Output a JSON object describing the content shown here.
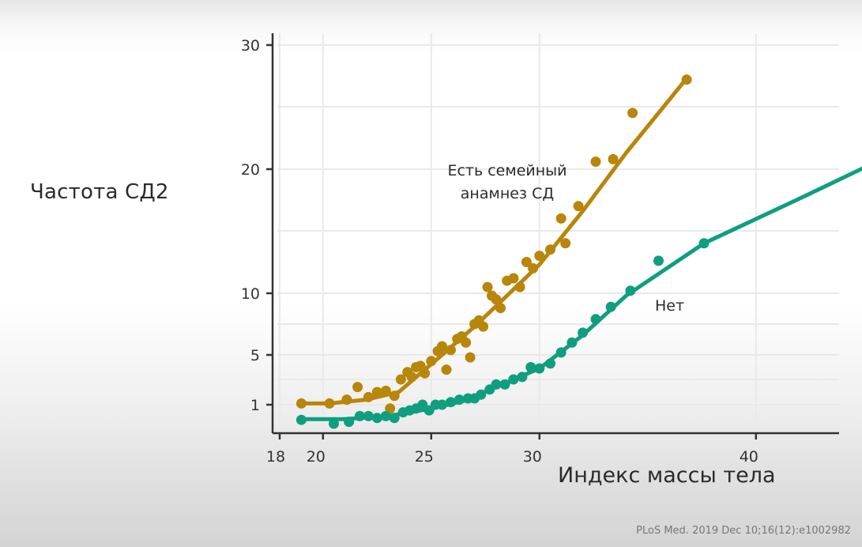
{
  "chart_data": {
    "type": "scatter",
    "title": "",
    "xlabel": "Индекс массы тела",
    "ylabel": "Частота СД2",
    "x_ticks": [
      18,
      20,
      25,
      30,
      40
    ],
    "y_ticks": [
      1,
      5,
      10,
      20,
      30
    ],
    "x_gridlines": [
      18,
      20,
      25,
      30,
      40
    ],
    "y_gridlines": [
      1,
      3,
      5,
      7.5,
      10,
      15,
      20,
      25,
      30
    ],
    "xlim": [
      17.8,
      47
    ],
    "ylim": [
      0,
      31
    ],
    "grid": true,
    "legend": "inline annotations",
    "series": [
      {
        "name": "Есть семейный анамнез СД",
        "color": "#b8860b",
        "points": [
          [
            19.0,
            1.1
          ],
          [
            20.3,
            1.1
          ],
          [
            21.1,
            1.4
          ],
          [
            21.6,
            2.4
          ],
          [
            22.1,
            1.6
          ],
          [
            22.5,
            2.0
          ],
          [
            22.9,
            2.1
          ],
          [
            23.1,
            0.9
          ],
          [
            23.3,
            1.7
          ],
          [
            23.6,
            3.0
          ],
          [
            23.9,
            3.6
          ],
          [
            24.1,
            3.2
          ],
          [
            24.3,
            4.0
          ],
          [
            24.5,
            4.1
          ],
          [
            24.7,
            3.5
          ],
          [
            25.0,
            4.5
          ],
          [
            25.3,
            5.3
          ],
          [
            25.5,
            5.7
          ],
          [
            25.7,
            3.8
          ],
          [
            25.9,
            5.4
          ],
          [
            26.2,
            6.3
          ],
          [
            26.4,
            6.5
          ],
          [
            26.6,
            6.0
          ],
          [
            26.8,
            4.8
          ],
          [
            27.0,
            7.5
          ],
          [
            27.2,
            7.8
          ],
          [
            27.4,
            7.3
          ],
          [
            27.6,
            10.5
          ],
          [
            27.8,
            9.8
          ],
          [
            28.0,
            9.5
          ],
          [
            28.2,
            8.8
          ],
          [
            28.5,
            11.0
          ],
          [
            28.8,
            11.2
          ],
          [
            29.1,
            10.5
          ],
          [
            29.4,
            12.5
          ],
          [
            29.7,
            12.0
          ],
          [
            30.0,
            13.0
          ],
          [
            30.5,
            13.5
          ],
          [
            31.0,
            16.0
          ],
          [
            31.2,
            14.0
          ],
          [
            31.8,
            17.0
          ],
          [
            32.6,
            20.6
          ],
          [
            33.4,
            20.8
          ],
          [
            34.3,
            24.5
          ],
          [
            36.8,
            27.2
          ]
        ]
      },
      {
        "name": "Нет",
        "color": "#0f9e80",
        "points": [
          [
            19.0,
            0.6
          ],
          [
            20.5,
            0.5
          ],
          [
            21.2,
            0.55
          ],
          [
            21.7,
            0.7
          ],
          [
            22.1,
            0.7
          ],
          [
            22.5,
            0.65
          ],
          [
            22.9,
            0.7
          ],
          [
            23.3,
            0.65
          ],
          [
            23.7,
            0.8
          ],
          [
            24.0,
            0.85
          ],
          [
            24.3,
            0.9
          ],
          [
            24.6,
            1.0
          ],
          [
            24.9,
            0.85
          ],
          [
            25.2,
            1.0
          ],
          [
            25.5,
            1.0
          ],
          [
            25.9,
            1.2
          ],
          [
            26.3,
            1.4
          ],
          [
            26.7,
            1.5
          ],
          [
            27.0,
            1.5
          ],
          [
            27.3,
            1.8
          ],
          [
            27.7,
            2.2
          ],
          [
            28.0,
            2.6
          ],
          [
            28.4,
            2.6
          ],
          [
            28.8,
            3.0
          ],
          [
            29.2,
            3.2
          ],
          [
            29.6,
            4.0
          ],
          [
            30.0,
            3.9
          ],
          [
            30.5,
            4.3
          ],
          [
            31.0,
            5.2
          ],
          [
            31.5,
            6.0
          ],
          [
            32.0,
            6.8
          ],
          [
            32.6,
            7.9
          ],
          [
            33.3,
            8.9
          ],
          [
            34.2,
            10.2
          ],
          [
            35.5,
            12.6
          ],
          [
            37.6,
            14.0
          ],
          [
            46.3,
            21.2
          ]
        ]
      }
    ],
    "fit_lines": [
      {
        "series": "Есть семейный анамнез СД",
        "points": [
          [
            19.0,
            1.1
          ],
          [
            20.3,
            1.1
          ],
          [
            22.0,
            1.4
          ],
          [
            23.5,
            2.0
          ],
          [
            24.5,
            3.5
          ],
          [
            25.5,
            5.0
          ],
          [
            27.0,
            7.3
          ],
          [
            28.5,
            9.8
          ],
          [
            30.0,
            12.3
          ],
          [
            32.0,
            16.6
          ],
          [
            34.0,
            21.3
          ],
          [
            36.8,
            27.3
          ]
        ]
      },
      {
        "series": "Нет",
        "points": [
          [
            19.0,
            0.62
          ],
          [
            21.0,
            0.62
          ],
          [
            23.0,
            0.7
          ],
          [
            25.0,
            0.9
          ],
          [
            26.5,
            1.3
          ],
          [
            28.0,
            2.4
          ],
          [
            30.0,
            3.9
          ],
          [
            32.0,
            6.6
          ],
          [
            34.0,
            9.8
          ],
          [
            37.6,
            14.0
          ],
          [
            42.0,
            17.6
          ],
          [
            46.3,
            21.2
          ]
        ]
      }
    ],
    "annotations": [
      {
        "text": "Есть семейный анамнез СД",
        "series": "Есть семейный анамнез СД"
      },
      {
        "text": "Нет",
        "series": "Нет"
      }
    ]
  },
  "labels": {
    "ylabel": "Частота СД2",
    "xlabel": "Индекс массы тела",
    "annotation_family_history": "Есть семейный анамнез СД",
    "annotation_none": "Нет",
    "citation": "PLoS Med. 2019 Dec 10;16(12):e1002982"
  },
  "colors": {
    "family_history": "#b8860b",
    "none": "#0f9e80",
    "axis": "#333333",
    "grid": "#e9e9e9"
  }
}
